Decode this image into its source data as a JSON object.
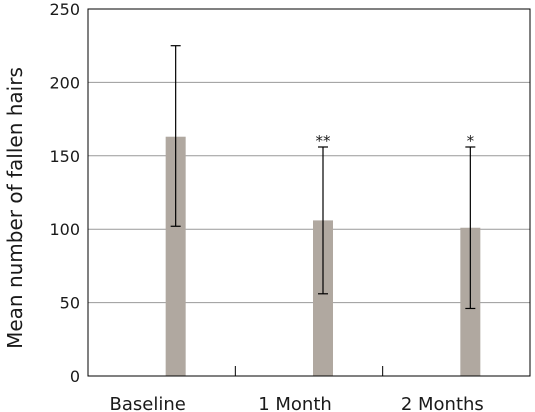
{
  "chart_data": {
    "type": "bar",
    "ylabel": "Mean number of fallen hairs",
    "xlabel": "",
    "ylim": [
      0,
      250
    ],
    "yticks": [
      0,
      50,
      100,
      150,
      200,
      250
    ],
    "grid": "horizontal",
    "categories": [
      "Baseline",
      "1 Month",
      "2 Months"
    ],
    "series": [
      {
        "values": [
          163,
          106,
          101
        ],
        "error_low": [
          102,
          56,
          46
        ],
        "error_high": [
          225,
          156,
          156
        ],
        "significance": [
          "",
          "**",
          "*"
        ]
      }
    ],
    "colors": {
      "bar": "#b0a8a0",
      "grid": "#999999",
      "axis": "#000000"
    }
  }
}
